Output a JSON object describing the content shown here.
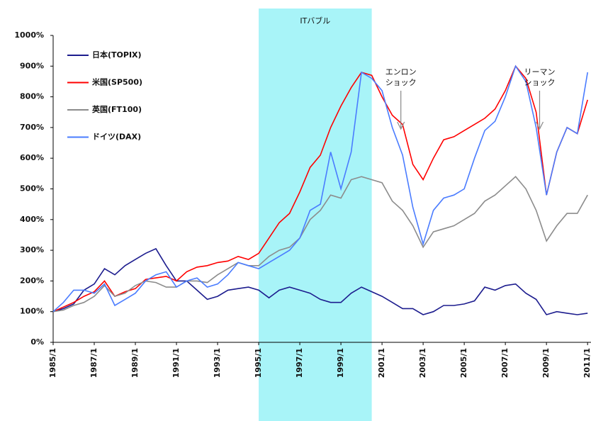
{
  "chart_data": {
    "type": "line",
    "highlight": {
      "label": "ITバブル",
      "from": "1995/1",
      "to": "2000/7"
    },
    "annotations": [
      {
        "lines": [
          "エンロン",
          "ショック"
        ],
        "x": "2001/12"
      },
      {
        "lines": [
          "リーマン",
          "ショック"
        ],
        "x": "2008/9"
      }
    ],
    "x": [
      "1985/1",
      "1985/7",
      "1986/1",
      "1986/7",
      "1987/1",
      "1987/7",
      "1988/1",
      "1988/7",
      "1989/1",
      "1989/7",
      "1990/1",
      "1990/7",
      "1991/1",
      "1991/7",
      "1992/1",
      "1992/7",
      "1993/1",
      "1993/7",
      "1994/1",
      "1994/7",
      "1995/1",
      "1995/7",
      "1996/1",
      "1996/7",
      "1997/1",
      "1997/7",
      "1998/1",
      "1998/7",
      "1999/1",
      "1999/7",
      "2000/1",
      "2000/7",
      "2001/1",
      "2001/7",
      "2002/1",
      "2002/7",
      "2003/1",
      "2003/7",
      "2004/1",
      "2004/7",
      "2005/1",
      "2005/7",
      "2006/1",
      "2006/7",
      "2007/1",
      "2007/7",
      "2008/1",
      "2008/7",
      "2009/1",
      "2009/7",
      "2010/1",
      "2010/7",
      "2011/1"
    ],
    "series": [
      {
        "name": "日本(TOPIX)",
        "color": "#1c1c8e",
        "values": [
          100,
          110,
          125,
          170,
          190,
          240,
          220,
          250,
          270,
          290,
          305,
          250,
          200,
          200,
          170,
          140,
          150,
          170,
          175,
          180,
          170,
          145,
          170,
          180,
          170,
          160,
          140,
          130,
          130,
          160,
          180,
          165,
          150,
          130,
          110,
          110,
          90,
          100,
          120,
          120,
          125,
          135,
          180,
          170,
          185,
          190,
          160,
          140,
          90,
          100,
          95,
          90,
          95
        ]
      },
      {
        "name": "米国(SP500)",
        "color": "#ff0000",
        "values": [
          100,
          115,
          130,
          150,
          165,
          200,
          150,
          165,
          175,
          205,
          210,
          215,
          200,
          230,
          245,
          250,
          260,
          265,
          280,
          270,
          290,
          340,
          390,
          420,
          490,
          570,
          610,
          700,
          770,
          830,
          880,
          870,
          800,
          740,
          710,
          580,
          530,
          600,
          660,
          670,
          690,
          710,
          730,
          760,
          820,
          900,
          860,
          750,
          480,
          620,
          700,
          680,
          790
        ]
      },
      {
        "name": "英国(FT100)",
        "color": "#8c8c8c",
        "values": [
          100,
          105,
          120,
          130,
          150,
          185,
          150,
          160,
          185,
          200,
          195,
          180,
          180,
          200,
          200,
          195,
          220,
          240,
          260,
          250,
          250,
          280,
          300,
          310,
          340,
          400,
          430,
          480,
          470,
          530,
          540,
          530,
          520,
          460,
          430,
          380,
          310,
          360,
          370,
          380,
          400,
          420,
          460,
          480,
          510,
          540,
          500,
          430,
          330,
          380,
          420,
          420,
          480
        ]
      },
      {
        "name": "ドイツ(DAX)",
        "color": "#4a7cff",
        "values": [
          100,
          130,
          170,
          170,
          160,
          190,
          120,
          140,
          160,
          200,
          220,
          230,
          180,
          200,
          210,
          180,
          190,
          220,
          260,
          250,
          240,
          260,
          280,
          300,
          340,
          430,
          450,
          620,
          500,
          620,
          880,
          860,
          820,
          700,
          610,
          440,
          320,
          430,
          470,
          480,
          500,
          600,
          690,
          720,
          800,
          900,
          850,
          700,
          480,
          620,
          700,
          680,
          880
        ]
      }
    ],
    "xlim": [
      "1985/1",
      "2011/3"
    ],
    "xticks": [
      "1985/1",
      "1987/1",
      "1989/1",
      "1991/1",
      "1993/1",
      "1995/1",
      "1997/1",
      "1999/1",
      "2001/1",
      "2003/1",
      "2005/1",
      "2007/1",
      "2009/1",
      "2011/1"
    ],
    "ylim": [
      0,
      1000
    ],
    "yticks": [
      {
        "value": 0,
        "label": "0%"
      },
      {
        "value": 100,
        "label": "100%"
      },
      {
        "value": 200,
        "label": "200%"
      },
      {
        "value": 300,
        "label": "300%"
      },
      {
        "value": 400,
        "label": "400%"
      },
      {
        "value": 500,
        "label": "500%"
      },
      {
        "value": 600,
        "label": "600%"
      },
      {
        "value": 700,
        "label": "700%"
      },
      {
        "value": 800,
        "label": "800%"
      },
      {
        "value": 900,
        "label": "900%"
      },
      {
        "value": 1000,
        "label": "1000%"
      }
    ],
    "legend": "upper left"
  }
}
